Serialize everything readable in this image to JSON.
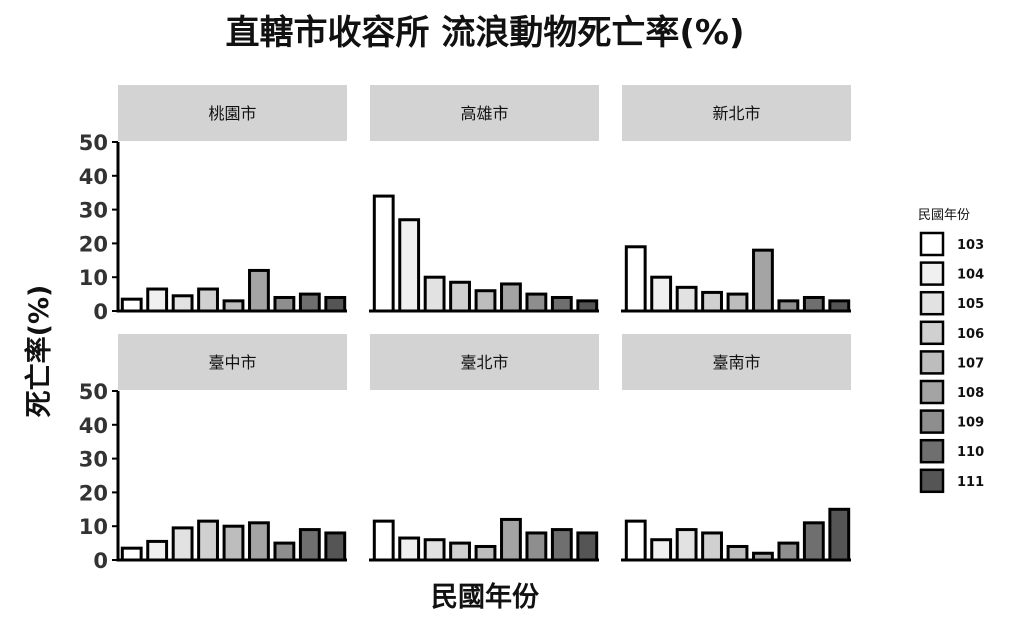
{
  "chart_data": {
    "type": "bar",
    "title": "直轄市收容所 流浪動物死亡率(%)",
    "xlabel": "民國年份",
    "ylabel": "死亡率(%)",
    "ylim": [
      0,
      50
    ],
    "yticks": [
      0,
      10,
      20,
      30,
      40,
      50
    ],
    "categories": [
      "103",
      "104",
      "105",
      "106",
      "107",
      "108",
      "109",
      "110",
      "111"
    ],
    "legend": {
      "title": "民國年份",
      "placement": "right",
      "colors": [
        "#ffffff",
        "#f0f0f0",
        "#e2e2e2",
        "#d0d0d0",
        "#bdbdbd",
        "#a4a4a4",
        "#8e8e8e",
        "#6f6f6f",
        "#555555"
      ]
    },
    "facets": [
      {
        "name": "桃園市",
        "values": [
          3.5,
          6.5,
          4.5,
          6.5,
          3,
          12,
          4,
          5,
          4
        ]
      },
      {
        "name": "高雄市",
        "values": [
          34,
          27,
          10,
          8.5,
          6,
          8,
          5,
          4,
          3
        ]
      },
      {
        "name": "新北市",
        "values": [
          19,
          10,
          7,
          5.5,
          5,
          18,
          3,
          4,
          3
        ]
      },
      {
        "name": "臺中市",
        "values": [
          3.5,
          5.5,
          9.5,
          11.5,
          10,
          11,
          5,
          9,
          8
        ]
      },
      {
        "name": "臺北市",
        "values": [
          11.5,
          6.5,
          6,
          5,
          4,
          12,
          8,
          9,
          8
        ]
      },
      {
        "name": "臺南市",
        "values": [
          11.5,
          6,
          9,
          8,
          4,
          2,
          5,
          11,
          15
        ]
      }
    ]
  }
}
